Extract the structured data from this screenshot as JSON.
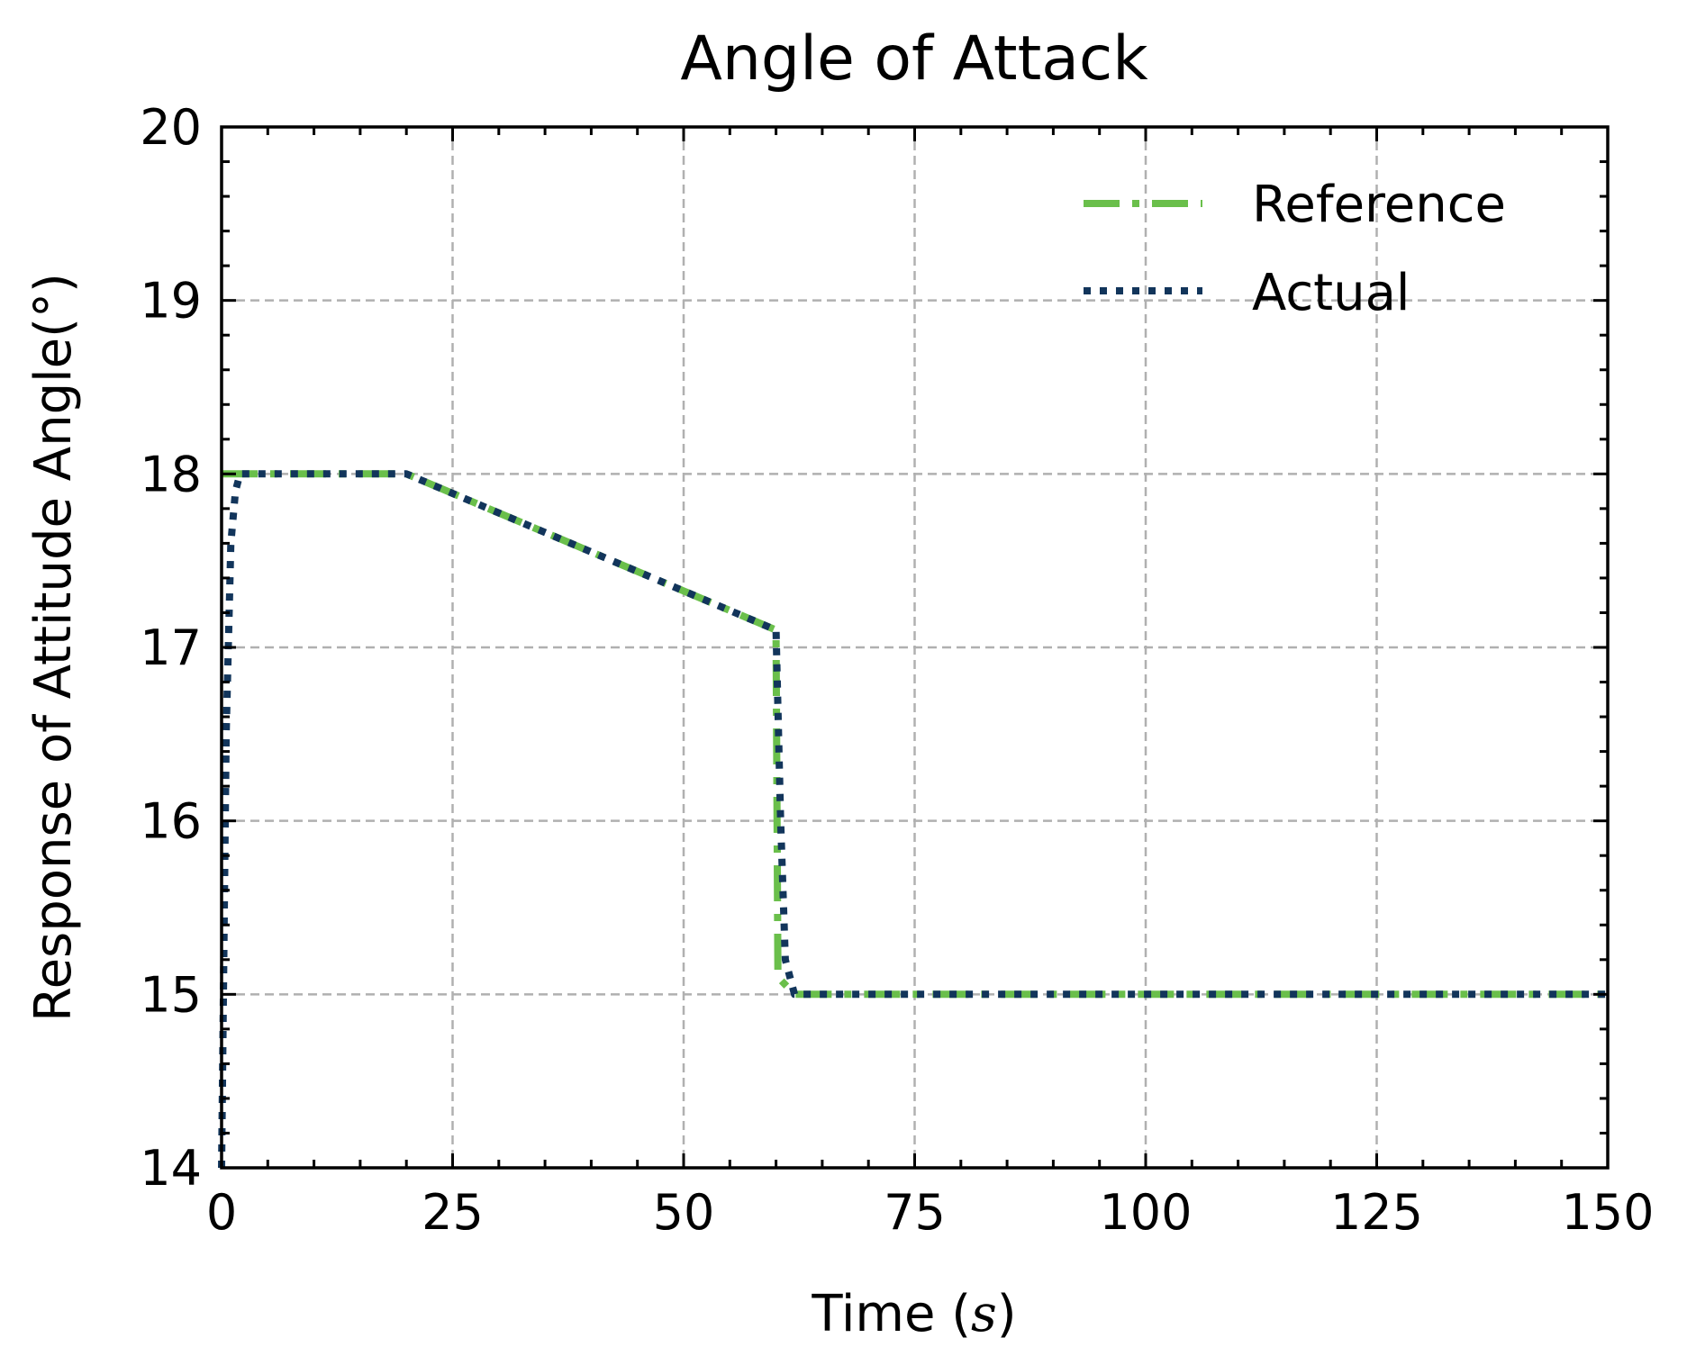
{
  "chart_data": {
    "type": "line",
    "title": "Angle of Attack",
    "xlabel": "Time (s)",
    "xlabel_prefix": "Time (",
    "xlabel_var": "s",
    "xlabel_suffix": ")",
    "ylabel": "Response of Attitude Angle(°)",
    "xlim": [
      0,
      150
    ],
    "ylim": [
      14,
      20
    ],
    "xticks": [
      0,
      25,
      50,
      75,
      100,
      125,
      150
    ],
    "yticks": [
      14,
      15,
      16,
      17,
      18,
      19,
      20
    ],
    "grid": true,
    "legend_position": "top-right",
    "series": [
      {
        "name": "Reference",
        "color": "#6abf4b",
        "style": "dash-dot",
        "x": [
          0,
          20,
          60,
          60.2,
          62,
          150
        ],
        "y": [
          18,
          18,
          17.1,
          15.1,
          15,
          15
        ]
      },
      {
        "name": "Actual",
        "color": "#12355b",
        "style": "dotted",
        "x": [
          0,
          0.5,
          1,
          1.5,
          2,
          3,
          20,
          60,
          60.5,
          61,
          62,
          150
        ],
        "y": [
          14,
          16.5,
          17.6,
          17.9,
          18,
          18,
          18,
          17.1,
          16.0,
          15.2,
          15,
          15
        ]
      }
    ]
  }
}
